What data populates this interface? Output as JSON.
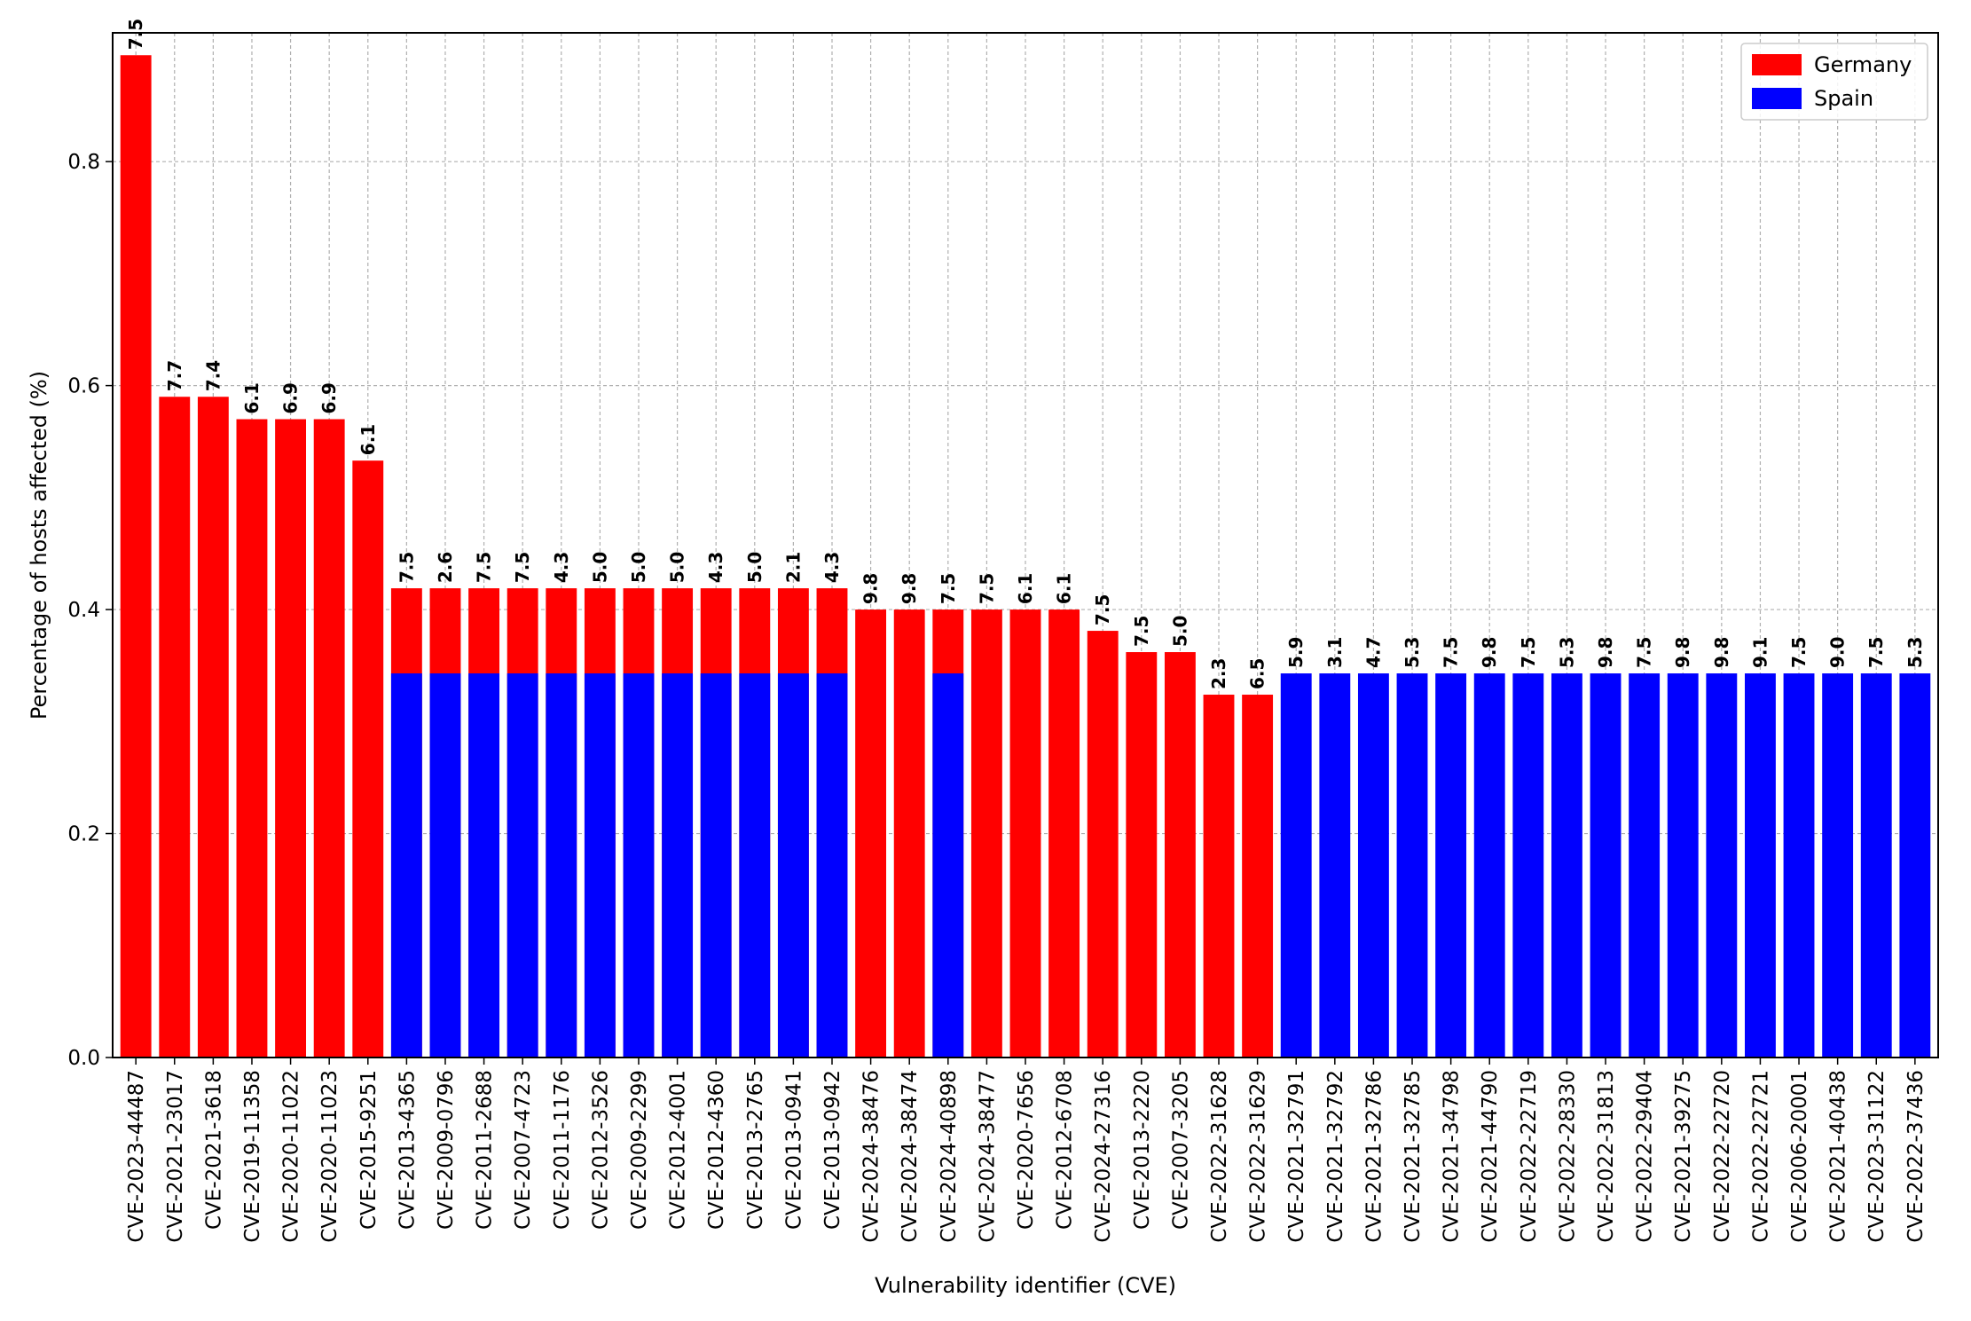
{
  "chart_data": {
    "type": "bar",
    "stacked": false,
    "overlaid": true,
    "xlabel": "Vulnerability identifier (CVE)",
    "ylabel": "Percentage of hosts affected (%)",
    "ylim": [
      0,
      0.915
    ],
    "yticks": [
      "0.0",
      "0.2",
      "0.4",
      "0.6",
      "0.8"
    ],
    "ytick_values": [
      0.0,
      0.2,
      0.4,
      0.6,
      0.8
    ],
    "grid": true,
    "legend_position": "top-right",
    "categories": [
      "CVE-2023-44487",
      "CVE-2021-23017",
      "CVE-2021-3618",
      "CVE-2019-11358",
      "CVE-2020-11022",
      "CVE-2020-11023",
      "CVE-2015-9251",
      "CVE-2013-4365",
      "CVE-2009-0796",
      "CVE-2011-2688",
      "CVE-2007-4723",
      "CVE-2011-1176",
      "CVE-2012-3526",
      "CVE-2009-2299",
      "CVE-2012-4001",
      "CVE-2012-4360",
      "CVE-2013-2765",
      "CVE-2013-0941",
      "CVE-2013-0942",
      "CVE-2024-38476",
      "CVE-2024-38474",
      "CVE-2024-40898",
      "CVE-2024-38477",
      "CVE-2020-7656",
      "CVE-2012-6708",
      "CVE-2024-27316",
      "CVE-2013-2220",
      "CVE-2007-3205",
      "CVE-2022-31628",
      "CVE-2022-31629",
      "CVE-2021-32791",
      "CVE-2021-32792",
      "CVE-2021-32786",
      "CVE-2021-32785",
      "CVE-2021-34798",
      "CVE-2021-44790",
      "CVE-2022-22719",
      "CVE-2022-28330",
      "CVE-2022-31813",
      "CVE-2022-29404",
      "CVE-2021-39275",
      "CVE-2022-22720",
      "CVE-2022-22721",
      "CVE-2006-20001",
      "CVE-2021-40438",
      "CVE-2023-31122",
      "CVE-2022-37436"
    ],
    "series": [
      {
        "name": "Germany",
        "color": "#ff0000",
        "values": [
          0.895,
          0.59,
          0.59,
          0.57,
          0.57,
          0.57,
          0.533,
          0.419,
          0.419,
          0.419,
          0.419,
          0.419,
          0.419,
          0.419,
          0.419,
          0.419,
          0.419,
          0.419,
          0.419,
          0.4,
          0.4,
          0.4,
          0.4,
          0.4,
          0.4,
          0.381,
          0.362,
          0.362,
          0.324,
          0.324,
          0,
          0,
          0,
          0,
          0,
          0,
          0,
          0,
          0,
          0,
          0,
          0,
          0,
          0,
          0,
          0,
          0
        ]
      },
      {
        "name": "Spain",
        "color": "#0000ff",
        "values": [
          0,
          0,
          0,
          0,
          0,
          0,
          0,
          0.343,
          0.343,
          0.343,
          0.343,
          0.343,
          0.343,
          0.343,
          0.343,
          0.343,
          0.343,
          0.343,
          0.343,
          0,
          0,
          0.343,
          0,
          0,
          0,
          0,
          0,
          0,
          0,
          0,
          0.343,
          0.343,
          0.343,
          0.343,
          0.343,
          0.343,
          0.343,
          0.343,
          0.343,
          0.343,
          0.343,
          0.343,
          0.343,
          0.343,
          0.343,
          0.343,
          0.343
        ]
      }
    ],
    "annotations": [
      "7.5",
      "7.7",
      "7.4",
      "6.1",
      "6.9",
      "6.9",
      "6.1",
      "7.5",
      "2.6",
      "7.5",
      "7.5",
      "4.3",
      "5.0",
      "5.0",
      "5.0",
      "4.3",
      "5.0",
      "2.1",
      "4.3",
      "9.8",
      "9.8",
      "7.5",
      "7.5",
      "6.1",
      "6.1",
      "7.5",
      "7.5",
      "5.0",
      "2.3",
      "6.5",
      "5.9",
      "3.1",
      "4.7",
      "5.3",
      "7.5",
      "9.8",
      "7.5",
      "5.3",
      "9.8",
      "7.5",
      "9.8",
      "9.8",
      "9.1",
      "7.5",
      "9.0",
      "7.5",
      "5.3"
    ]
  }
}
